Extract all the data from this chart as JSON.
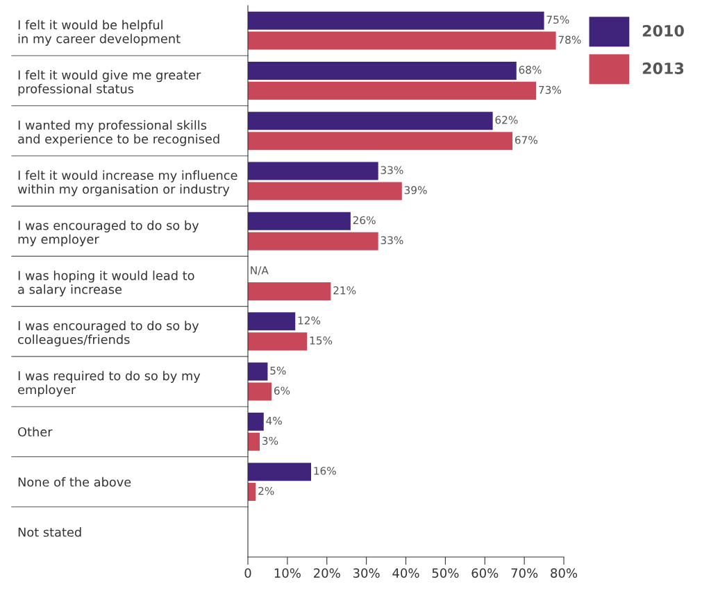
{
  "chart_data": {
    "type": "bar",
    "orientation": "horizontal",
    "categories": [
      "I felt it would be helpful\nin my career development",
      "I felt it would give me greater\nprofessional status",
      "I wanted my professional skills\nand experience to be recognised",
      "I felt it would increase my influence\nwithin my organisation or industry",
      "I was encouraged to do so by\nmy employer",
      "I was hoping it would lead to\na salary increase",
      "I was encouraged to do so by\ncolleagues/friends",
      "I was required to do so by my\nemployer",
      "Other",
      "None of the above",
      "Not stated"
    ],
    "series": [
      {
        "name": "2010",
        "color": "#40237a",
        "values": [
          75,
          68,
          62,
          33,
          26,
          null,
          12,
          5,
          4,
          16,
          null
        ],
        "value_labels": [
          "75%",
          "68%",
          "62%",
          "33%",
          "26%",
          "N/A",
          "12%",
          "5%",
          "4%",
          "16%",
          null
        ]
      },
      {
        "name": "2013",
        "color": "#c8485a",
        "values": [
          78,
          73,
          67,
          39,
          33,
          21,
          15,
          6,
          3,
          2,
          null
        ],
        "value_labels": [
          "78%",
          "73%",
          "67%",
          "39%",
          "33%",
          "21%",
          "15%",
          "6%",
          "3%",
          "2%",
          null
        ]
      }
    ],
    "xlim": [
      0,
      80
    ],
    "xticks": [
      0,
      {
        "value": 10,
        "label": "10%"
      },
      {
        "value": 20,
        "label": "20%"
      },
      {
        "value": 30,
        "label": "30%"
      },
      {
        "value": 40,
        "label": "40%"
      },
      {
        "value": 50,
        "label": "50%"
      },
      {
        "value": 60,
        "label": "60%"
      },
      {
        "value": 70,
        "label": "70%"
      },
      {
        "value": 80,
        "label": "80%"
      }
    ],
    "grid": false,
    "legend": "top right"
  }
}
